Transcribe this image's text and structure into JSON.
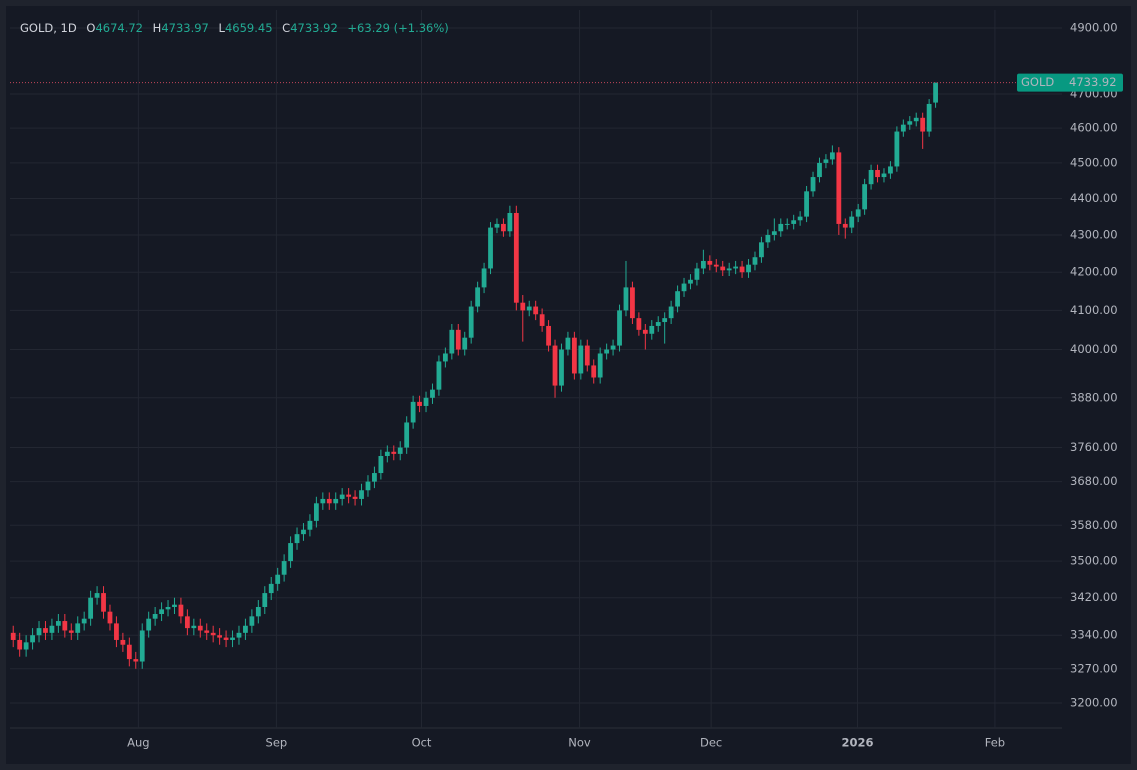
{
  "chart_data": {
    "type": "candlestick",
    "title": "GOLD, 1D",
    "symbol": "GOLD",
    "ohlc_labels": [
      "O",
      "H",
      "L",
      "C"
    ],
    "change": "+63.29",
    "change_pct": "(+1.36%)",
    "log_scale": true,
    "grid": true,
    "up_color": "#22ab94",
    "down_color": "#f23645",
    "xlim": [
      -0.5,
      162.6
    ],
    "ylim": [
      3150,
      4956
    ],
    "xticks": [
      {
        "value": 19.4,
        "label": "Aug"
      },
      {
        "value": 40.8,
        "label": "Sep"
      },
      {
        "value": 63.3,
        "label": "Oct"
      },
      {
        "value": 87.8,
        "label": "Nov"
      },
      {
        "value": 108.2,
        "label": "Dec"
      },
      {
        "value": 130.9,
        "label": "2026"
      },
      {
        "value": 152.2,
        "label": "Feb"
      }
    ],
    "yticks": [
      {
        "value": 4900,
        "label": "4900.00"
      },
      {
        "value": 4700,
        "label": "4700.00"
      },
      {
        "value": 4600,
        "label": "4600.00"
      },
      {
        "value": 4500,
        "label": "4500.00"
      },
      {
        "value": 4400,
        "label": "4400.00"
      },
      {
        "value": 4300,
        "label": "4300.00"
      },
      {
        "value": 4200,
        "label": "4200.00"
      },
      {
        "value": 4100,
        "label": "4100.00"
      },
      {
        "value": 4000,
        "label": "4000.00"
      },
      {
        "value": 3880,
        "label": "3880.00"
      },
      {
        "value": 3760,
        "label": "3760.00"
      },
      {
        "value": 3680,
        "label": "3680.00"
      },
      {
        "value": 3580,
        "label": "3580.00"
      },
      {
        "value": 3500,
        "label": "3500.00"
      },
      {
        "value": 3420,
        "label": "3420.00"
      },
      {
        "value": 3340,
        "label": "3340.00"
      },
      {
        "value": 3270,
        "label": "3270.00"
      },
      {
        "value": 3200,
        "label": "3200.00"
      }
    ],
    "series": [
      {
        "name": "GOLD",
        "values": [
          [
            3345,
            3360,
            3315,
            3330
          ],
          [
            3330,
            3345,
            3295,
            3310
          ],
          [
            3310,
            3340,
            3295,
            3325
          ],
          [
            3325,
            3355,
            3310,
            3340
          ],
          [
            3340,
            3370,
            3325,
            3355
          ],
          [
            3355,
            3370,
            3330,
            3345
          ],
          [
            3345,
            3375,
            3330,
            3360
          ],
          [
            3360,
            3385,
            3345,
            3370
          ],
          [
            3370,
            3385,
            3335,
            3350
          ],
          [
            3350,
            3365,
            3330,
            3345
          ],
          [
            3345,
            3380,
            3330,
            3365
          ],
          [
            3365,
            3390,
            3350,
            3375
          ],
          [
            3375,
            3435,
            3360,
            3420
          ],
          [
            3420,
            3445,
            3405,
            3430
          ],
          [
            3430,
            3445,
            3375,
            3390
          ],
          [
            3390,
            3405,
            3350,
            3365
          ],
          [
            3365,
            3380,
            3315,
            3330
          ],
          [
            3330,
            3345,
            3305,
            3320
          ],
          [
            3320,
            3335,
            3275,
            3290
          ],
          [
            3290,
            3305,
            3270,
            3285
          ],
          [
            3285,
            3365,
            3270,
            3350
          ],
          [
            3350,
            3390,
            3335,
            3375
          ],
          [
            3375,
            3400,
            3360,
            3385
          ],
          [
            3385,
            3410,
            3370,
            3395
          ],
          [
            3395,
            3415,
            3380,
            3400
          ],
          [
            3400,
            3420,
            3385,
            3405
          ],
          [
            3405,
            3420,
            3365,
            3380
          ],
          [
            3380,
            3395,
            3340,
            3355
          ],
          [
            3355,
            3375,
            3340,
            3360
          ],
          [
            3360,
            3375,
            3335,
            3350
          ],
          [
            3350,
            3365,
            3330,
            3345
          ],
          [
            3345,
            3360,
            3325,
            3340
          ],
          [
            3340,
            3355,
            3320,
            3335
          ],
          [
            3335,
            3350,
            3315,
            3330
          ],
          [
            3330,
            3350,
            3315,
            3335
          ],
          [
            3335,
            3360,
            3320,
            3345
          ],
          [
            3345,
            3375,
            3330,
            3360
          ],
          [
            3360,
            3395,
            3345,
            3380
          ],
          [
            3380,
            3415,
            3365,
            3400
          ],
          [
            3400,
            3445,
            3385,
            3430
          ],
          [
            3430,
            3465,
            3415,
            3450
          ],
          [
            3450,
            3485,
            3435,
            3470
          ],
          [
            3470,
            3515,
            3455,
            3500
          ],
          [
            3500,
            3555,
            3485,
            3540
          ],
          [
            3540,
            3575,
            3525,
            3560
          ],
          [
            3560,
            3585,
            3545,
            3570
          ],
          [
            3570,
            3605,
            3555,
            3590
          ],
          [
            3590,
            3645,
            3575,
            3630
          ],
          [
            3630,
            3655,
            3615,
            3640
          ],
          [
            3640,
            3655,
            3615,
            3630
          ],
          [
            3630,
            3655,
            3615,
            3640
          ],
          [
            3640,
            3665,
            3625,
            3650
          ],
          [
            3650,
            3665,
            3630,
            3645
          ],
          [
            3645,
            3660,
            3625,
            3640
          ],
          [
            3640,
            3675,
            3625,
            3660
          ],
          [
            3660,
            3695,
            3645,
            3680
          ],
          [
            3680,
            3715,
            3665,
            3700
          ],
          [
            3700,
            3755,
            3685,
            3740
          ],
          [
            3740,
            3765,
            3725,
            3750
          ],
          [
            3750,
            3765,
            3730,
            3745
          ],
          [
            3745,
            3775,
            3730,
            3760
          ],
          [
            3760,
            3835,
            3745,
            3820
          ],
          [
            3820,
            3885,
            3805,
            3870
          ],
          [
            3870,
            3885,
            3845,
            3860
          ],
          [
            3860,
            3895,
            3845,
            3880
          ],
          [
            3880,
            3915,
            3865,
            3900
          ],
          [
            3900,
            3985,
            3885,
            3970
          ],
          [
            3970,
            4005,
            3955,
            3990
          ],
          [
            3990,
            4065,
            3975,
            4050
          ],
          [
            4050,
            4065,
            3985,
            4000
          ],
          [
            4000,
            4045,
            3985,
            4030
          ],
          [
            4030,
            4125,
            4015,
            4110
          ],
          [
            4110,
            4175,
            4095,
            4160
          ],
          [
            4160,
            4225,
            4145,
            4210
          ],
          [
            4210,
            4335,
            4195,
            4320
          ],
          [
            4320,
            4345,
            4305,
            4330
          ],
          [
            4330,
            4345,
            4295,
            4310
          ],
          [
            4310,
            4380,
            4295,
            4360
          ],
          [
            4360,
            4380,
            4100,
            4120
          ],
          [
            4120,
            4140,
            4020,
            4100
          ],
          [
            4100,
            4125,
            4085,
            4110
          ],
          [
            4110,
            4125,
            4075,
            4090
          ],
          [
            4090,
            4105,
            4045,
            4060
          ],
          [
            4060,
            4075,
            3995,
            4010
          ],
          [
            4010,
            4025,
            3880,
            3910
          ],
          [
            3910,
            4015,
            3895,
            4000
          ],
          [
            4000,
            4045,
            3985,
            4030
          ],
          [
            4030,
            4045,
            3925,
            3940
          ],
          [
            3940,
            4025,
            3925,
            4010
          ],
          [
            4010,
            4025,
            3945,
            3960
          ],
          [
            3960,
            3975,
            3915,
            3930
          ],
          [
            3930,
            4005,
            3915,
            3990
          ],
          [
            3990,
            4015,
            3975,
            4000
          ],
          [
            4000,
            4025,
            3985,
            4010
          ],
          [
            4010,
            4115,
            3995,
            4100
          ],
          [
            4100,
            4230,
            4085,
            4160
          ],
          [
            4160,
            4175,
            4065,
            4080
          ],
          [
            4080,
            4095,
            4035,
            4050
          ],
          [
            4050,
            4065,
            4000,
            4040
          ],
          [
            4040,
            4075,
            4025,
            4060
          ],
          [
            4060,
            4085,
            4045,
            4070
          ],
          [
            4070,
            4095,
            4015,
            4080
          ],
          [
            4080,
            4125,
            4065,
            4110
          ],
          [
            4110,
            4165,
            4095,
            4150
          ],
          [
            4150,
            4185,
            4135,
            4170
          ],
          [
            4170,
            4195,
            4155,
            4180
          ],
          [
            4180,
            4225,
            4165,
            4210
          ],
          [
            4210,
            4260,
            4195,
            4230
          ],
          [
            4230,
            4245,
            4205,
            4220
          ],
          [
            4220,
            4235,
            4200,
            4215
          ],
          [
            4215,
            4230,
            4190,
            4205
          ],
          [
            4205,
            4225,
            4190,
            4210
          ],
          [
            4210,
            4230,
            4195,
            4215
          ],
          [
            4215,
            4230,
            4185,
            4200
          ],
          [
            4200,
            4235,
            4185,
            4220
          ],
          [
            4220,
            4255,
            4205,
            4240
          ],
          [
            4240,
            4295,
            4225,
            4280
          ],
          [
            4280,
            4315,
            4265,
            4300
          ],
          [
            4300,
            4345,
            4285,
            4310
          ],
          [
            4310,
            4345,
            4295,
            4330
          ],
          [
            4330,
            4345,
            4315,
            4330
          ],
          [
            4330,
            4355,
            4315,
            4340
          ],
          [
            4340,
            4365,
            4325,
            4350
          ],
          [
            4350,
            4435,
            4335,
            4420
          ],
          [
            4420,
            4475,
            4405,
            4460
          ],
          [
            4460,
            4515,
            4445,
            4500
          ],
          [
            4500,
            4525,
            4485,
            4510
          ],
          [
            4510,
            4550,
            4495,
            4530
          ],
          [
            4530,
            4545,
            4300,
            4330
          ],
          [
            4330,
            4345,
            4290,
            4320
          ],
          [
            4320,
            4365,
            4305,
            4350
          ],
          [
            4350,
            4385,
            4335,
            4370
          ],
          [
            4370,
            4455,
            4355,
            4440
          ],
          [
            4440,
            4495,
            4425,
            4480
          ],
          [
            4480,
            4495,
            4445,
            4460
          ],
          [
            4460,
            4485,
            4445,
            4470
          ],
          [
            4470,
            4505,
            4455,
            4490
          ],
          [
            4490,
            4605,
            4475,
            4590
          ],
          [
            4590,
            4625,
            4575,
            4610
          ],
          [
            4610,
            4635,
            4595,
            4620
          ],
          [
            4620,
            4645,
            4605,
            4630
          ],
          [
            4630,
            4645,
            4540,
            4590
          ],
          [
            4590,
            4685,
            4575,
            4670.63
          ],
          [
            4674.72,
            4733.97,
            4659.45,
            4733.92
          ]
        ]
      }
    ]
  }
}
